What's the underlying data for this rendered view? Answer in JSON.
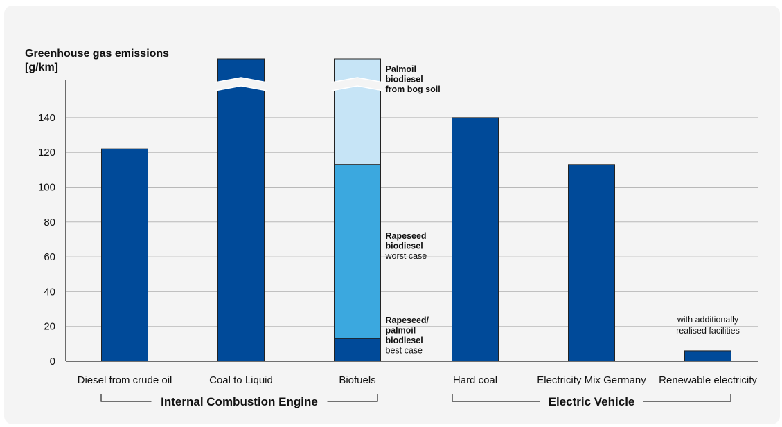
{
  "chart_data": {
    "type": "bar",
    "title": "Greenhouse gas emissions",
    "unit_label": "[g/km]",
    "ylim": [
      0,
      160
    ],
    "yticks": [
      0,
      20,
      40,
      60,
      80,
      100,
      120,
      140
    ],
    "grid": true,
    "categories": [
      "Diesel from crude oil",
      "Coal to Liquid",
      "Biofuels",
      "Hard coal",
      "Electricity Mix Germany",
      "Renewable electricity"
    ],
    "bars": [
      {
        "category": "Diesel from crude oil",
        "value": 122
      },
      {
        "category": "Coal to Liquid",
        "value": null,
        "broken_axis": true
      },
      {
        "category": "Biofuels",
        "stacked": true,
        "segments": [
          {
            "bold": "Rapeseed/ palmoil biodiesel",
            "normal": "best case",
            "value": 13
          },
          {
            "bold": "Rapeseed biodiesel",
            "normal": "worst case",
            "value": 113
          },
          {
            "bold": "Palmoil biodiesel from bog soil",
            "normal": "",
            "value": null,
            "broken_axis": true
          }
        ]
      },
      {
        "category": "Hard coal",
        "value": 140
      },
      {
        "category": "Electricity Mix Germany",
        "value": 113
      },
      {
        "category": "Renewable electricity",
        "value": 6,
        "note": "with additionally realised facilities"
      }
    ],
    "groups": [
      {
        "label": "Internal Combustion Engine",
        "categories": [
          "Diesel from crude oil",
          "Coal to Liquid",
          "Biofuels"
        ]
      },
      {
        "label": "Electric Vehicle",
        "categories": [
          "Hard coal",
          "Electricity Mix Germany",
          "Renewable electricity"
        ]
      }
    ]
  },
  "colors": {
    "dark_blue": "#004a99",
    "mid_blue": "#3ba8df",
    "light_blue": "#c6e4f6",
    "grid": "#b8b8b8",
    "panel": "#f4f4f4"
  }
}
